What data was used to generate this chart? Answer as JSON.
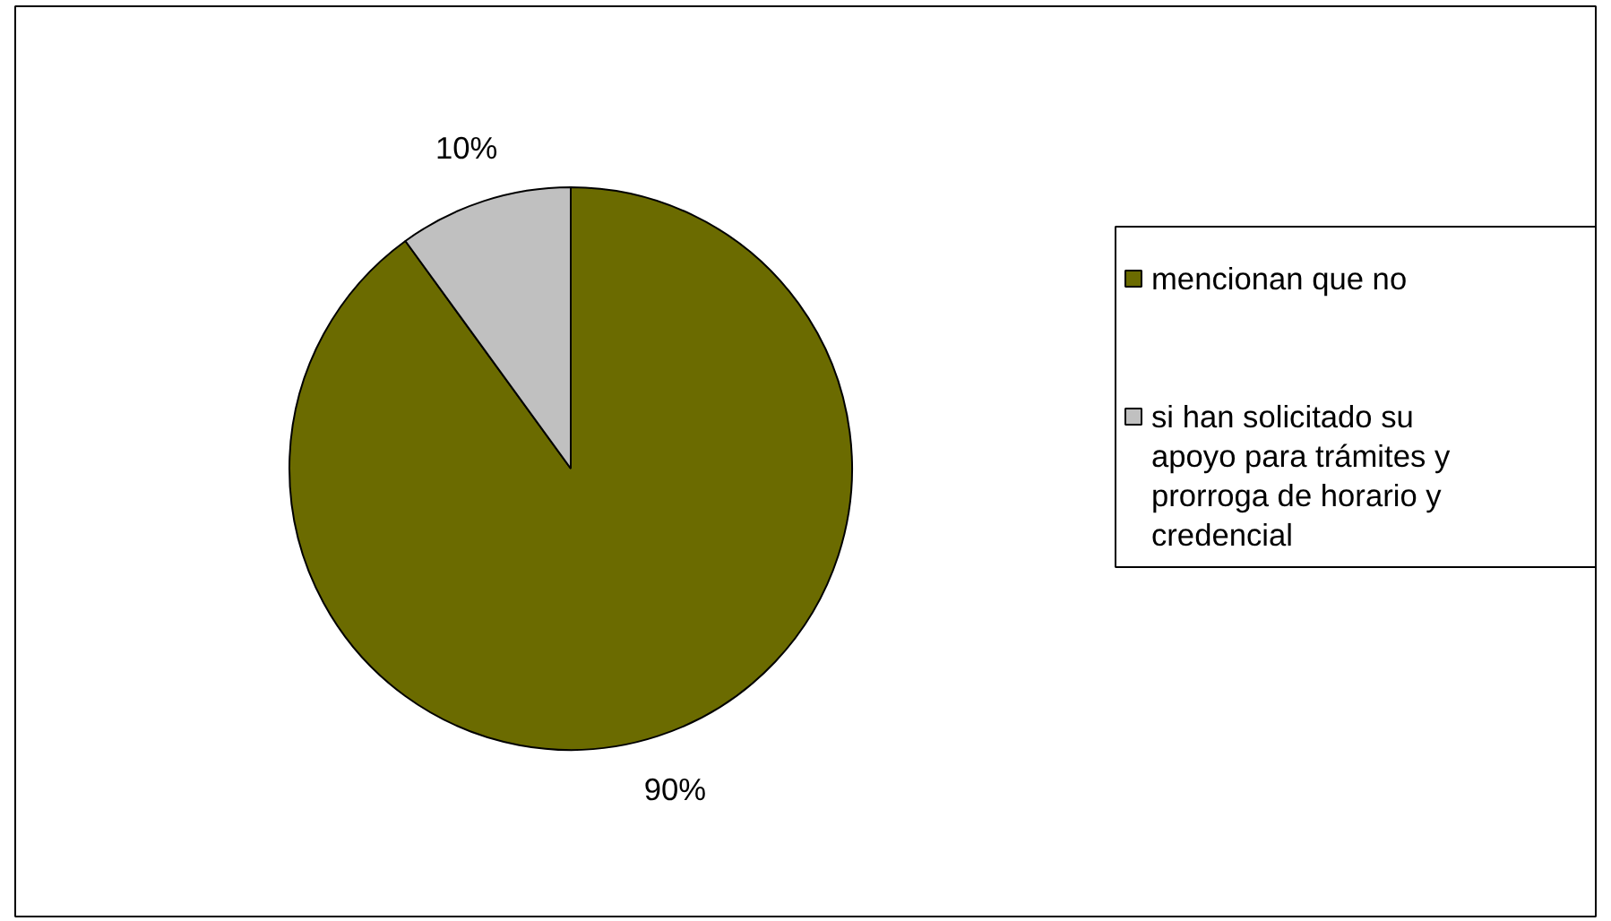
{
  "chart_data": {
    "type": "pie",
    "categories": [
      "mencionan que no",
      "si han solicitado su apoyo para trámites y prorroga de horario y credencial"
    ],
    "values": [
      90,
      10
    ],
    "colors": [
      "#6b6b00",
      "#c0c0c0"
    ],
    "value_labels": [
      "90%",
      "10%"
    ],
    "legend": "right"
  }
}
